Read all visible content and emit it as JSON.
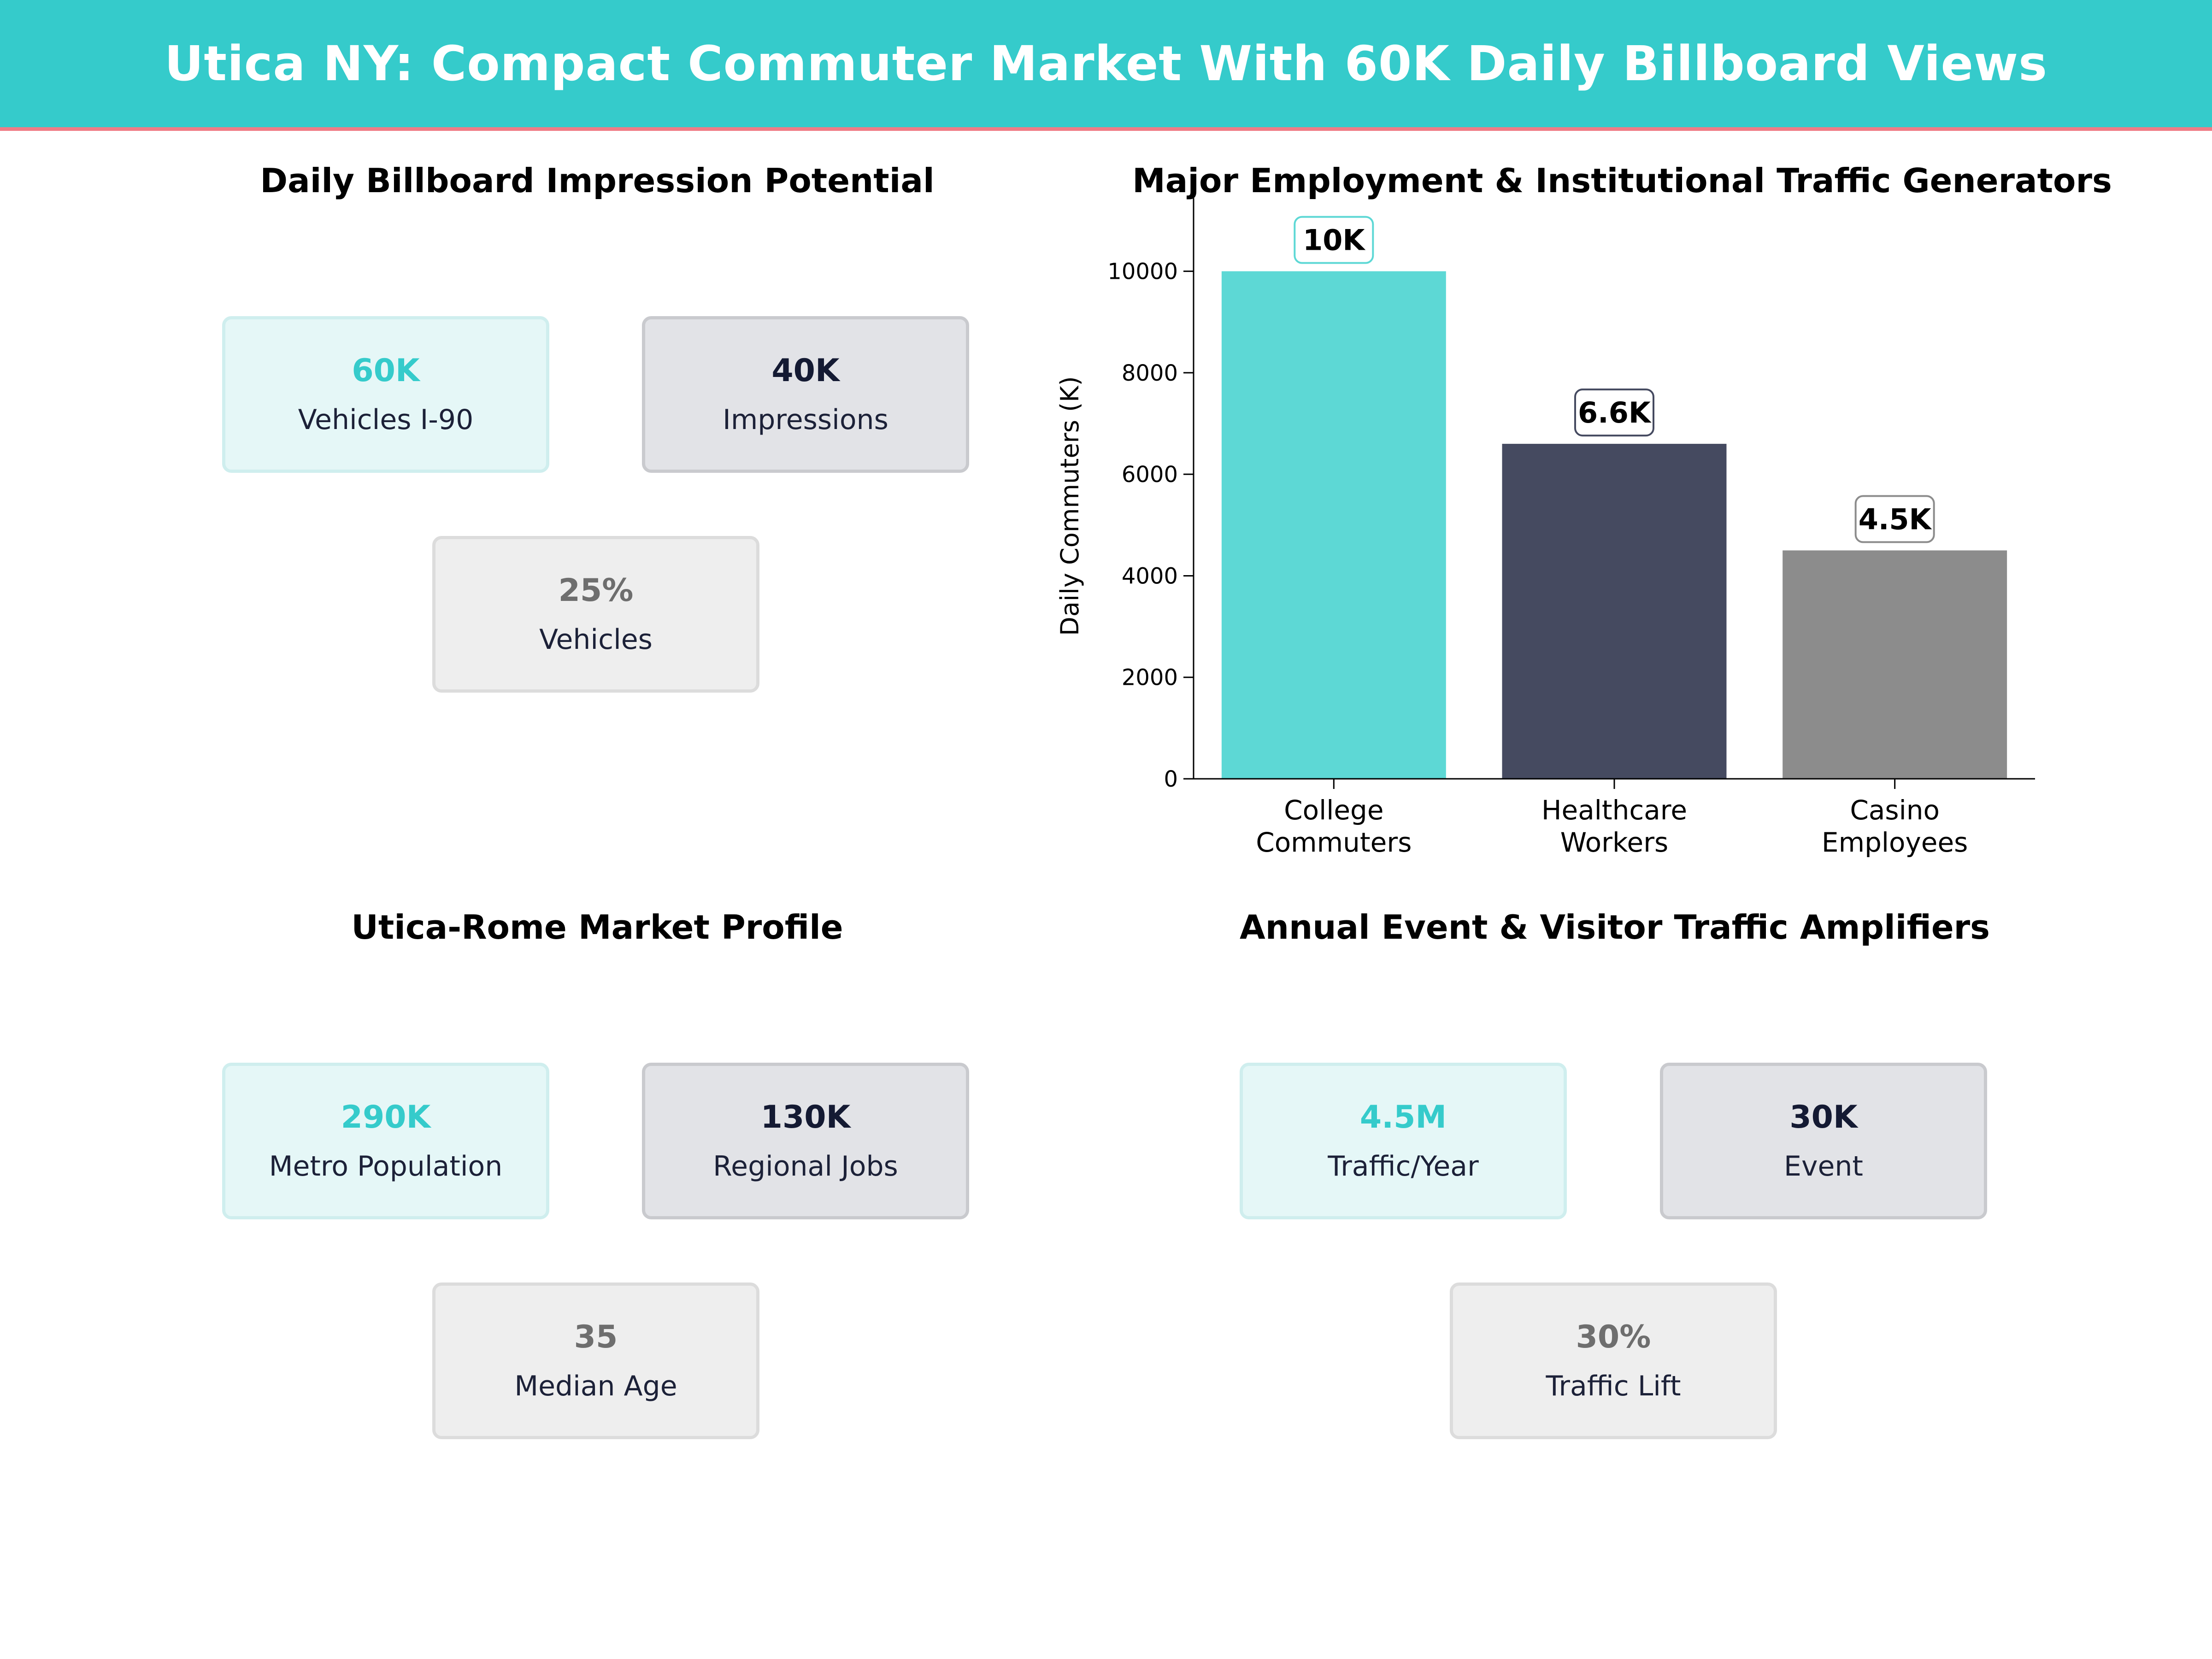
{
  "header": {
    "title": "Utica NY: Compact Commuter Market With 60K Daily Billboard Views"
  },
  "impressions": {
    "title": "Daily Billboard Impression Potential",
    "cards": [
      {
        "value": "60K",
        "label": "Vehicles I-90",
        "tone": "teal"
      },
      {
        "value": "40K",
        "label": "Impressions",
        "tone": "navy"
      },
      {
        "value": "25%",
        "label": "Vehicles",
        "tone": "gray"
      }
    ]
  },
  "employment": {
    "title": "Major Employment & Institutional Traffic Generators"
  },
  "market": {
    "title": "Utica-Rome Market Profile",
    "cards": [
      {
        "value": "290K",
        "label": "Metro Population",
        "tone": "teal"
      },
      {
        "value": "130K",
        "label": "Regional Jobs",
        "tone": "navy"
      },
      {
        "value": "35",
        "label": "Median Age",
        "tone": "gray"
      }
    ]
  },
  "events": {
    "title": "Annual Event & Visitor Traffic Amplifiers",
    "cards": [
      {
        "value": "4.5M",
        "label": "Traffic/Year",
        "tone": "teal"
      },
      {
        "value": "30K",
        "label": "Event",
        "tone": "navy"
      },
      {
        "value": "30%",
        "label": "Traffic Lift",
        "tone": "gray"
      }
    ]
  },
  "colors": {
    "teal": "#35CBCB",
    "navy": "#141A33",
    "gray": "#6E6E6E",
    "accent_line": "#F07C86"
  },
  "chart_data": {
    "type": "bar",
    "title": "Major Employment & Institutional Traffic Generators",
    "categories": [
      "College\nCommuters",
      "Healthcare\nWorkers",
      "Casino\nEmployees"
    ],
    "values": [
      10000,
      6600,
      4500
    ],
    "data_labels": [
      "10K",
      "6.6K",
      "4.5K"
    ],
    "bar_colors": [
      "#5DD8D5",
      "#454A60",
      "#8C8C8C"
    ],
    "xlabel": "",
    "ylabel": "Daily Commuters (K)",
    "ylim": [
      0,
      10750
    ],
    "yticks": [
      0,
      2000,
      4000,
      6000,
      8000,
      10000
    ],
    "grid": false
  }
}
